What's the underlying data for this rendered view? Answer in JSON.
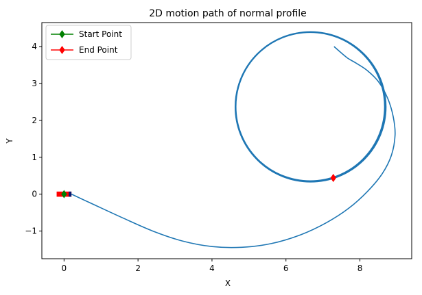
{
  "chart_data": {
    "type": "line",
    "title": "2D motion path of normal profile",
    "xlabel": "X",
    "ylabel": "Y",
    "xlim": [
      -0.6,
      9.4
    ],
    "ylim": [
      -1.75,
      4.65
    ],
    "xticks": [
      0,
      2,
      4,
      6,
      8
    ],
    "yticks": [
      -1,
      0,
      1,
      2,
      3,
      4
    ],
    "xtick_labels": [
      "0",
      "2",
      "4",
      "6",
      "8"
    ],
    "ytick_labels": [
      "−1",
      "0",
      "1",
      "2",
      "3",
      "4"
    ],
    "grid": false,
    "legend_position": "top-left",
    "colors": {
      "path": "#1f77b4",
      "start": "#008000",
      "end": "#ff0000",
      "vehicle_body": "#ff0000",
      "vehicle_front": "#0a1a6e"
    },
    "series": [
      {
        "key": "path",
        "x": [
          0.2,
          0.8,
          1.6,
          2.4,
          3.2,
          4.0,
          4.8,
          5.6,
          6.4,
          7.1,
          7.7,
          8.2,
          8.6,
          8.85,
          8.95,
          8.9,
          8.75,
          8.5,
          8.2,
          7.9,
          7.65,
          7.3
        ],
        "y": [
          0.0,
          -0.28,
          -0.65,
          -1.0,
          -1.27,
          -1.42,
          -1.44,
          -1.34,
          -1.1,
          -0.77,
          -0.38,
          0.07,
          0.55,
          1.05,
          1.6,
          2.1,
          2.6,
          3.05,
          3.35,
          3.55,
          3.7,
          4.0
        ]
      },
      {
        "key": "circle",
        "center_x": 6.66,
        "center_y": 2.37,
        "radius": 2.02
      },
      {
        "key": "start",
        "name": "Start Point",
        "x": [
          0.0
        ],
        "y": [
          0.0
        ]
      },
      {
        "key": "end",
        "name": "End Point",
        "x": [
          7.28
        ],
        "y": [
          0.44
        ]
      }
    ],
    "vehicle": {
      "x_start": -0.2,
      "x_end": 0.2,
      "y_center": 0.0,
      "height": 0.14
    },
    "legend": [
      {
        "label": "Start Point",
        "color": "#008000",
        "marker": "diamond"
      },
      {
        "label": "End Point",
        "color": "#ff0000",
        "marker": "diamond"
      }
    ]
  }
}
